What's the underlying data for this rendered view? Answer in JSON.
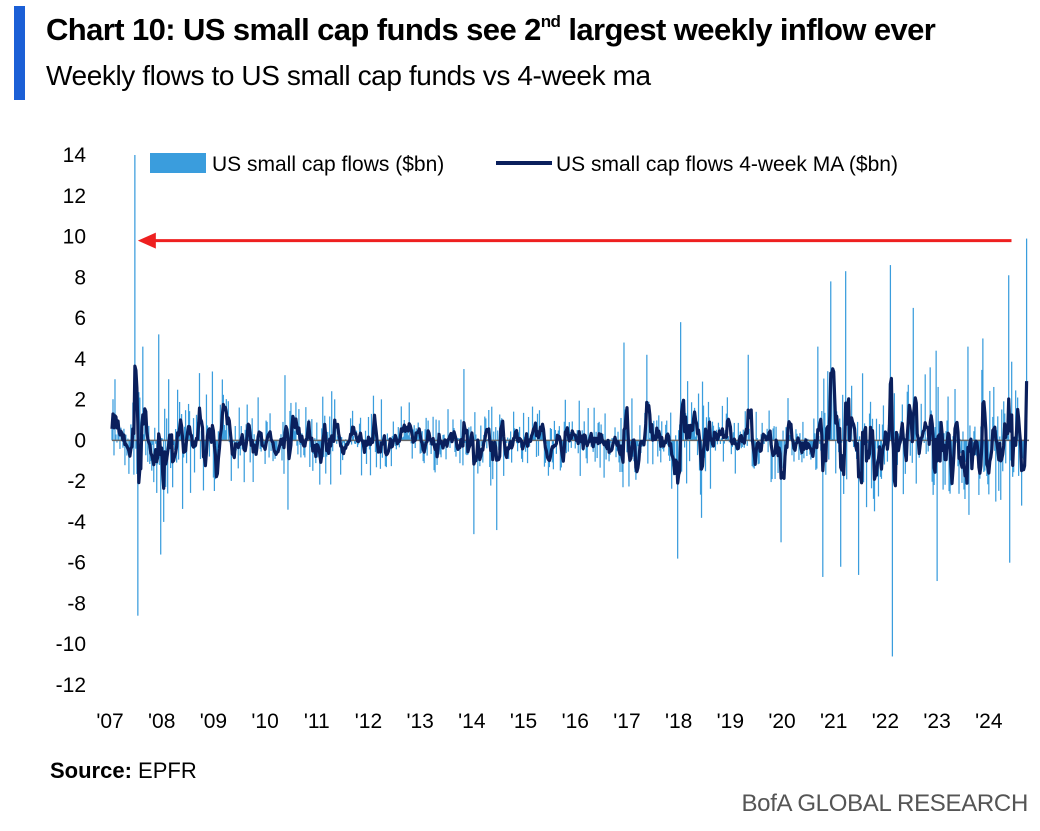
{
  "header": {
    "title_main": "Chart 10: US small cap funds see 2",
    "title_sup": "nd",
    "title_tail": " largest weekly inflow ever",
    "subtitle": "Weekly flows to US small cap funds vs 4-week ma"
  },
  "footer": {
    "source_label": "Source:",
    "source_value": " EPFR",
    "brand": "BofA GLOBAL RESEARCH"
  },
  "colors": {
    "accent": "#1b5fd6",
    "bars": "#3a9ddd",
    "ma_line": "#0a1f5c",
    "arrow": "#ee2020"
  },
  "chart_data": {
    "type": "bar+line",
    "ylim": [
      -12,
      14
    ],
    "yticks": [
      14,
      12,
      10,
      8,
      6,
      4,
      2,
      0,
      -2,
      -4,
      -6,
      -8,
      -10,
      -12
    ],
    "xlim": [
      2007,
      2024.7
    ],
    "xtick_labels": [
      "'07",
      "'08",
      "'09",
      "'10",
      "'11",
      "'12",
      "'13",
      "'14",
      "'15",
      "'16",
      "'17",
      "'18",
      "'19",
      "'20",
      "'21",
      "'22",
      "'23",
      "'24"
    ],
    "xtick_years": [
      2007,
      2008,
      2009,
      2010,
      2011,
      2012,
      2013,
      2014,
      2015,
      2016,
      2017,
      2018,
      2019,
      2020,
      2021,
      2022,
      2023,
      2024
    ],
    "legend_position": "top",
    "series": [
      {
        "name": "US small cap flows ($bn)",
        "kind": "bar"
      },
      {
        "name": "US small cap flows 4-week MA ($bn)",
        "kind": "line"
      }
    ],
    "key_points": [
      [
        2007.05,
        3.0
      ],
      [
        2007.45,
        14.0
      ],
      [
        2007.5,
        -8.6
      ],
      [
        2007.6,
        4.6
      ],
      [
        2007.9,
        5.2
      ],
      [
        2007.95,
        -5.6
      ],
      [
        2008.7,
        3.3
      ],
      [
        2008.0,
        -4.0
      ],
      [
        2010.35,
        3.2
      ],
      [
        2010.4,
        -3.4
      ],
      [
        2013.8,
        3.5
      ],
      [
        2014.0,
        -4.6
      ],
      [
        2014.45,
        -4.4
      ],
      [
        2016.9,
        4.8
      ],
      [
        2017.35,
        4.2
      ],
      [
        2018.0,
        5.8
      ],
      [
        2017.95,
        -5.8
      ],
      [
        2018.4,
        -3.8
      ],
      [
        2019.3,
        4.2
      ],
      [
        2019.95,
        -5.0
      ],
      [
        2020.65,
        4.6
      ],
      [
        2020.75,
        -6.7
      ],
      [
        2020.9,
        7.8
      ],
      [
        2021.1,
        -6.2
      ],
      [
        2021.2,
        8.3
      ],
      [
        2021.45,
        -6.6
      ],
      [
        2022.05,
        8.6
      ],
      [
        2022.1,
        -10.6
      ],
      [
        2022.5,
        6.5
      ],
      [
        2022.95,
        4.4
      ],
      [
        2022.95,
        -6.9
      ],
      [
        2023.55,
        4.6
      ],
      [
        2023.85,
        5.0
      ],
      [
        2024.35,
        8.1
      ],
      [
        2024.35,
        -6.0
      ],
      [
        2024.6,
        -3.2
      ],
      [
        2024.7,
        9.9
      ]
    ],
    "annotations": [
      {
        "type": "arrow",
        "from": [
          2024.4,
          9.8
        ],
        "to": [
          2007.5,
          9.8
        ]
      }
    ]
  }
}
